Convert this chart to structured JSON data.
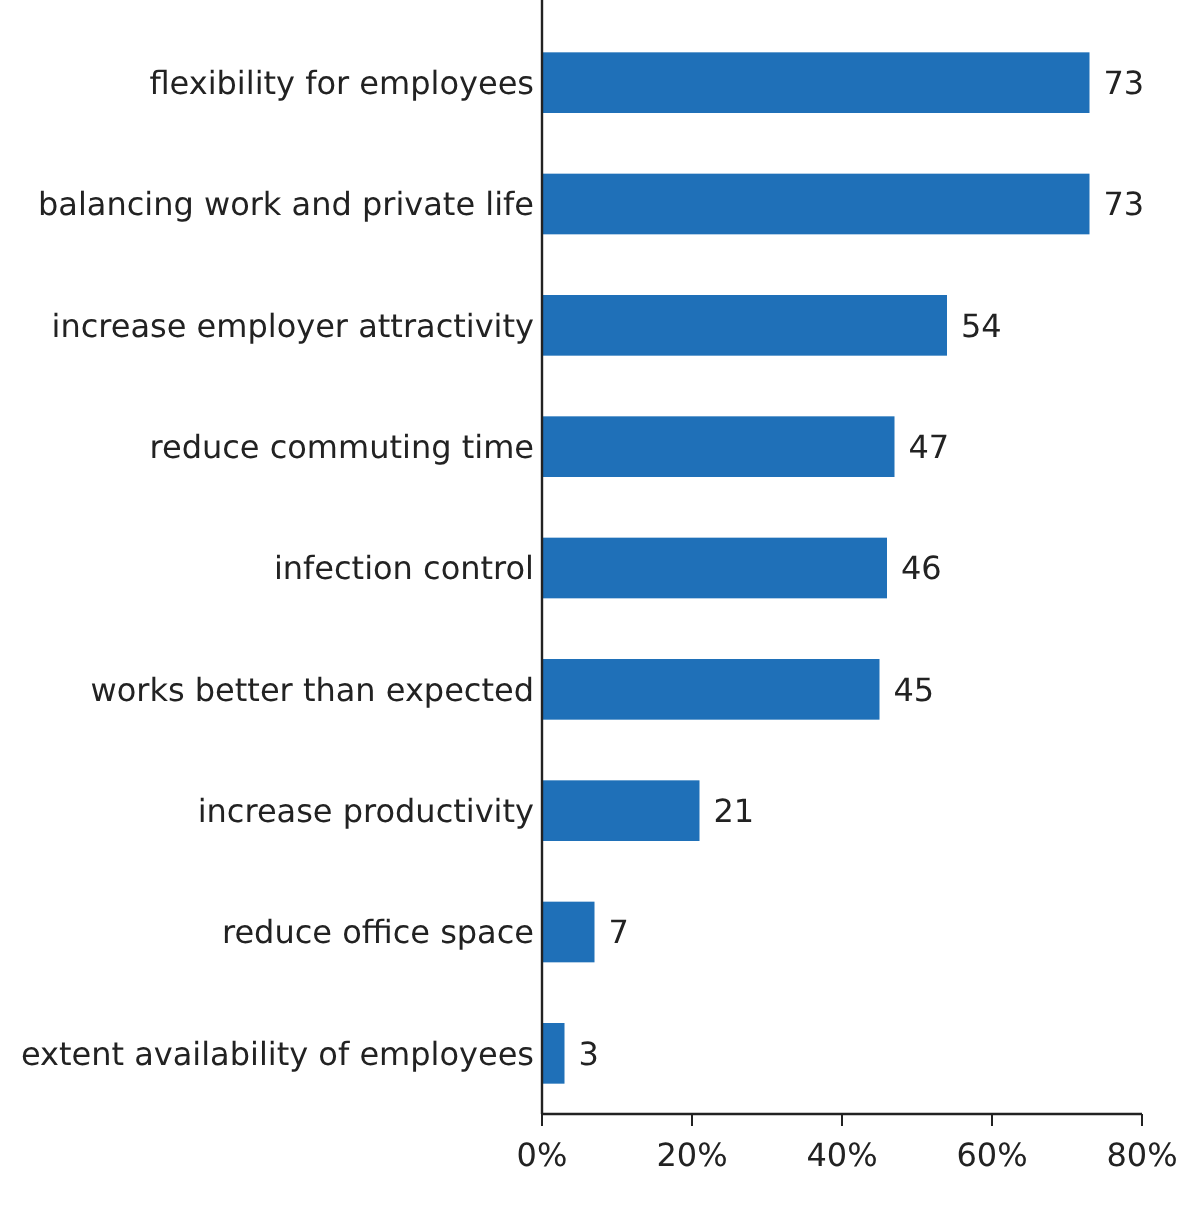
{
  "chart_data": {
    "type": "bar",
    "orientation": "horizontal",
    "categories": [
      "flexibility for employees",
      "balancing work and private life",
      "increase employer attractivity",
      "reduce commuting time",
      "infection control",
      "works better than expected",
      "increase productivity",
      "reduce office space",
      "extent availability of employees"
    ],
    "values": [
      73,
      73,
      54,
      47,
      46,
      45,
      21,
      7,
      3
    ],
    "color": "#1f70b8",
    "xlim": [
      0,
      80
    ],
    "xticks": [
      {
        "value": 0,
        "label": "0%"
      },
      {
        "value": 20,
        "label": "20%"
      },
      {
        "value": 40,
        "label": "40%"
      },
      {
        "value": 60,
        "label": "60%"
      },
      {
        "value": 80,
        "label": "80%"
      }
    ],
    "data_labels": true
  }
}
